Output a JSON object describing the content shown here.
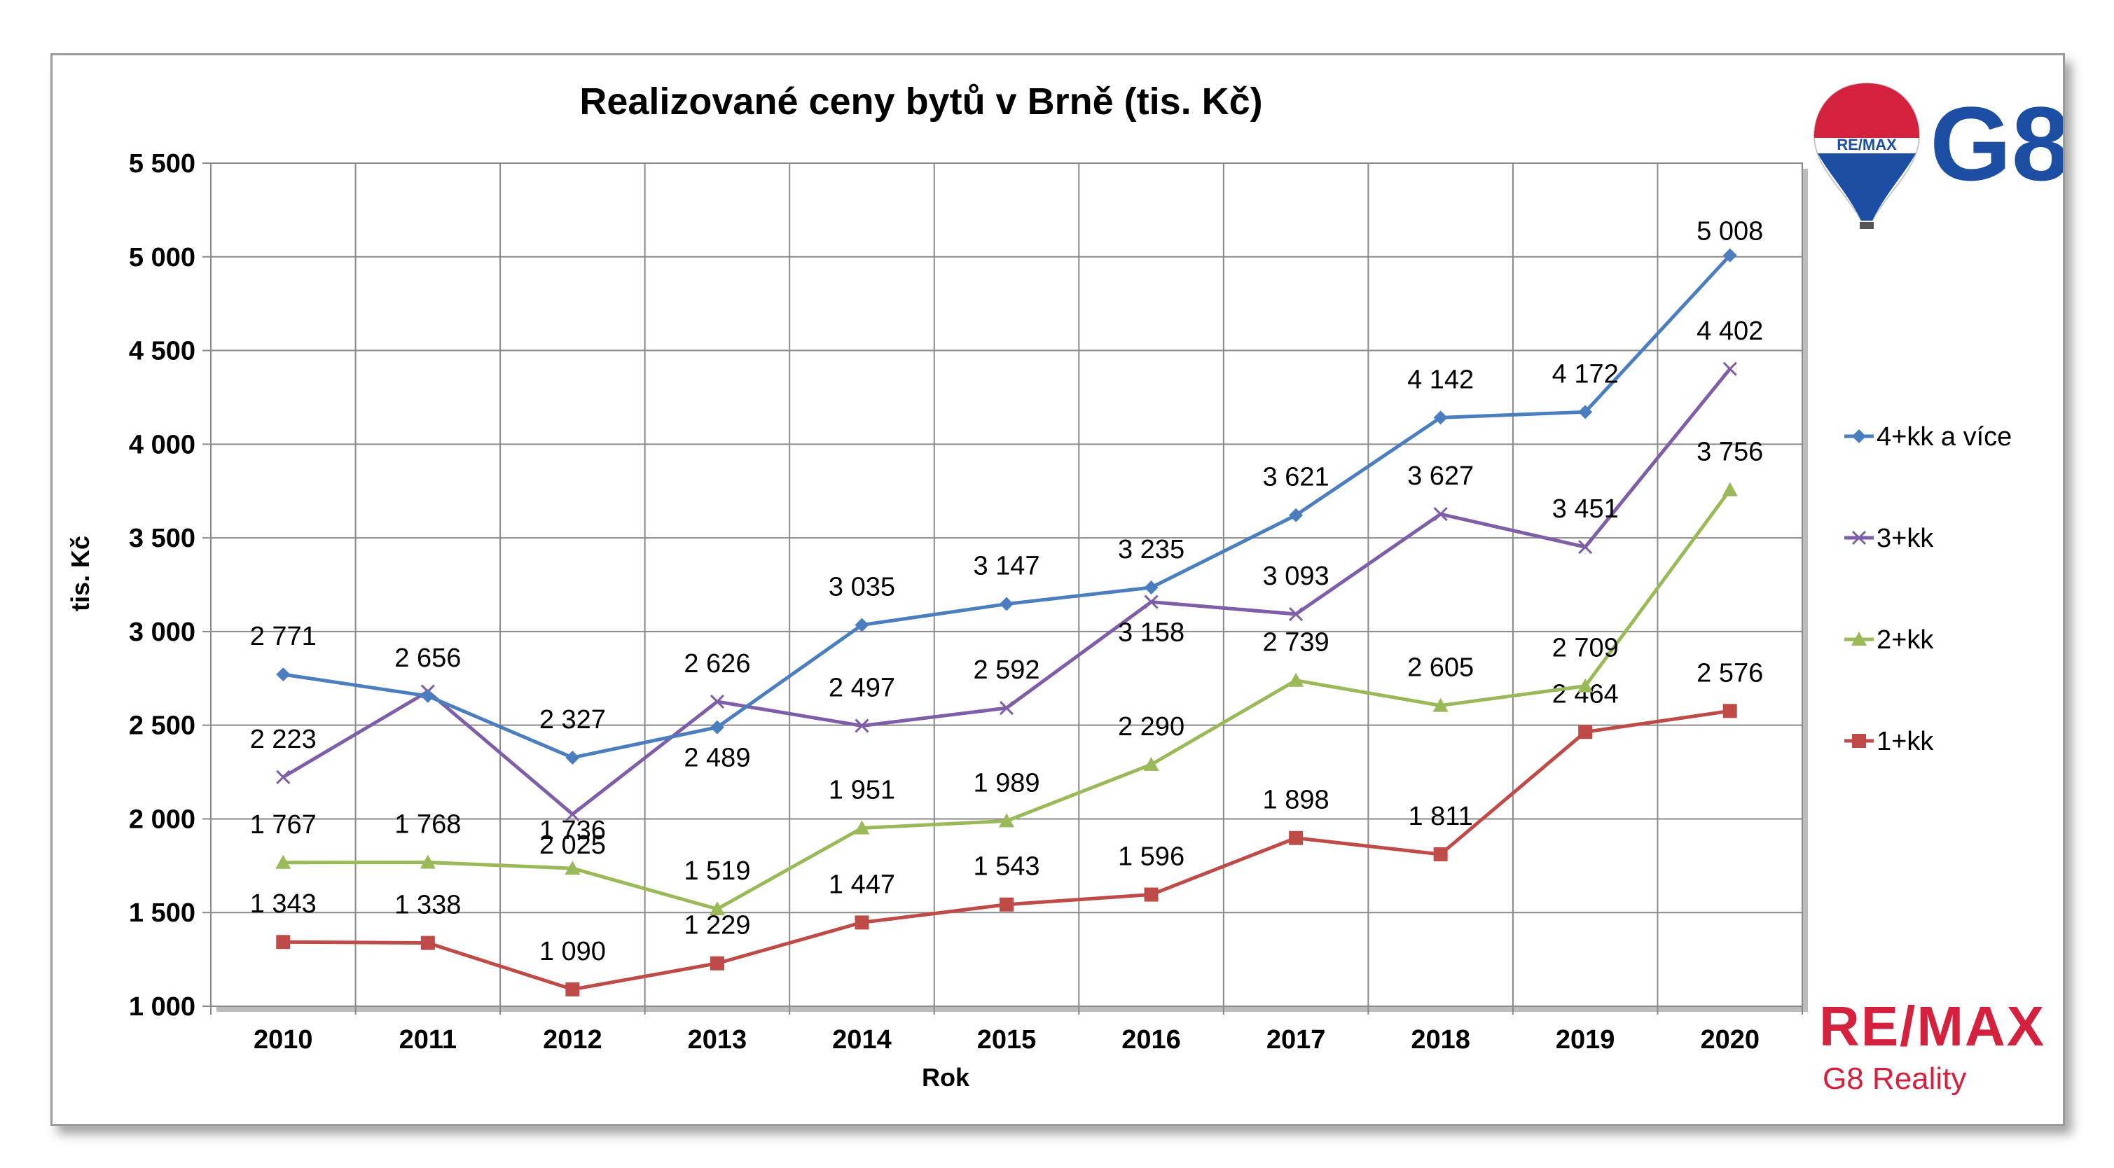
{
  "chart_data": {
    "type": "line",
    "title": "Realizované ceny bytů v Brně (tis. Kč)",
    "xlabel": "Rok",
    "ylabel": "tis. Kč",
    "categories": [
      "2010",
      "2011",
      "2012",
      "2013",
      "2014",
      "2015",
      "2016",
      "2017",
      "2018",
      "2019",
      "2020"
    ],
    "ylim": [
      1000,
      5500
    ],
    "yticks": [
      1000,
      1500,
      2000,
      2500,
      3000,
      3500,
      4000,
      4500,
      5000,
      5500
    ],
    "ytick_labels": [
      "1 000",
      "1 500",
      "2 000",
      "2 500",
      "3 000",
      "3 500",
      "4 000",
      "4 500",
      "5 000",
      "5 500"
    ],
    "grid": true,
    "legend_position": "right",
    "series": [
      {
        "name": "4+kk a více",
        "color": "#4a7ebf",
        "marker": "diamond",
        "values": [
          2771,
          2656,
          2327,
          2489,
          3035,
          3147,
          3235,
          3621,
          4142,
          4172,
          5008
        ],
        "labels": [
          "2 771",
          "2 656",
          "2 327",
          "2 489",
          "3 035",
          "3 147",
          "3 235",
          "3 621",
          "4 142",
          "4 172",
          "5 008"
        ]
      },
      {
        "name": "3+kk",
        "color": "#7e5ea6",
        "marker": "x",
        "values": [
          2223,
          2680,
          2025,
          2626,
          2497,
          2592,
          3158,
          3093,
          3627,
          3451,
          4402
        ],
        "labels": [
          "2 223",
          "",
          "2 025",
          "2 626",
          "2 497",
          "2 592",
          "3 158",
          "3 093",
          "3 627",
          "3 451",
          "4 402"
        ]
      },
      {
        "name": "2+kk",
        "color": "#9aba59",
        "marker": "triangle",
        "values": [
          1767,
          1768,
          1736,
          1519,
          1951,
          1989,
          2290,
          2739,
          2605,
          2709,
          3756
        ],
        "labels": [
          "1 767",
          "1 768",
          "1 736",
          "1 519",
          "1 951",
          "1 989",
          "2 290",
          "2 739",
          "2 605",
          "2 709",
          "3 756"
        ]
      },
      {
        "name": "1+kk",
        "color": "#bf4b48",
        "marker": "square",
        "values": [
          1343,
          1338,
          1090,
          1229,
          1447,
          1543,
          1596,
          1898,
          1811,
          2464,
          2576
        ],
        "labels": [
          "1 343",
          "1 338",
          "1 090",
          "1 229",
          "1 447",
          "1 543",
          "1 596",
          "1 898",
          "1 811",
          "2 464",
          "2 576"
        ]
      }
    ]
  },
  "branding": {
    "balloon_text": "RE/MAX",
    "g8_text": "G8",
    "remax_text": "RE/MAX",
    "subtitle": "G8 Reality",
    "red": "#d4213d",
    "blue": "#1c4ea3"
  }
}
